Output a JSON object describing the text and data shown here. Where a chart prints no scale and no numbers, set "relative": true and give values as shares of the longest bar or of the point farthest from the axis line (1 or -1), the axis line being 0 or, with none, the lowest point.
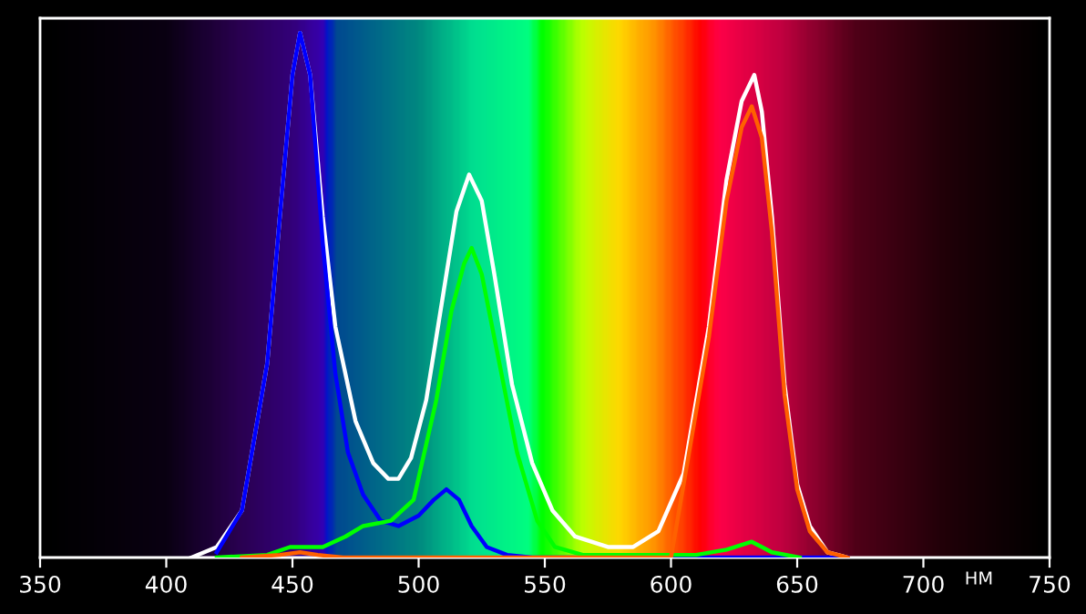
{
  "chart_data": {
    "type": "line",
    "relative": true,
    "xlabel": "НМ",
    "xlim": [
      350,
      750
    ],
    "xticks": [
      350,
      400,
      450,
      500,
      550,
      600,
      650,
      700,
      750
    ],
    "grid": false,
    "legend": false,
    "marker": "none",
    "line_style": "solid",
    "tick_labels": "x",
    "series": [
      {
        "color": "#ffffff",
        "x": [
          410,
          420,
          430,
          440,
          445,
          450,
          453,
          457,
          462,
          467,
          475,
          482,
          488,
          492,
          497,
          503,
          510,
          515,
          520,
          525,
          530,
          537,
          545,
          553,
          562,
          575,
          585,
          595,
          605,
          615,
          622,
          628,
          633,
          636,
          640,
          645,
          650,
          655,
          662,
          670
        ],
        "values": [
          0,
          0.02,
          0.09,
          0.37,
          0.65,
          0.92,
          1,
          0.92,
          0.65,
          0.44,
          0.26,
          0.18,
          0.15,
          0.15,
          0.19,
          0.3,
          0.51,
          0.66,
          0.73,
          0.68,
          0.54,
          0.33,
          0.18,
          0.09,
          0.04,
          0.02,
          0.02,
          0.05,
          0.16,
          0.44,
          0.72,
          0.87,
          0.92,
          0.85,
          0.65,
          0.33,
          0.14,
          0.06,
          0.01,
          0
        ]
      },
      {
        "color": "#0000ff",
        "x": [
          420,
          430,
          440,
          445,
          450,
          453,
          457,
          462,
          467,
          472,
          478,
          485,
          492,
          500,
          506,
          511,
          516,
          521,
          527,
          535,
          545,
          670
        ],
        "values": [
          0.01,
          0.09,
          0.37,
          0.65,
          0.92,
          1,
          0.92,
          0.6,
          0.35,
          0.2,
          0.12,
          0.07,
          0.06,
          0.08,
          0.11,
          0.13,
          0.11,
          0.06,
          0.02,
          0.005,
          0,
          0
        ]
      },
      {
        "color": "#00ff00",
        "x": [
          420,
          440,
          449,
          453,
          462,
          471,
          478,
          489,
          498,
          507,
          513,
          518,
          521,
          525,
          532,
          539,
          547,
          554,
          565,
          610,
          622,
          632,
          640,
          651
        ],
        "values": [
          0,
          0.005,
          0.02,
          0.02,
          0.02,
          0.04,
          0.06,
          0.07,
          0.11,
          0.3,
          0.47,
          0.56,
          0.59,
          0.54,
          0.37,
          0.2,
          0.07,
          0.02,
          0.005,
          0.005,
          0.015,
          0.03,
          0.01,
          0
        ]
      },
      {
        "color": "#ff6000",
        "x": [
          430,
          445,
          453,
          460,
          470,
          600,
          605,
          615,
          622,
          628,
          632,
          636,
          640,
          645,
          650,
          655,
          662,
          670
        ],
        "values": [
          0,
          0.005,
          0.01,
          0.005,
          0,
          0,
          0.14,
          0.42,
          0.68,
          0.82,
          0.86,
          0.8,
          0.62,
          0.31,
          0.13,
          0.05,
          0.01,
          0
        ]
      }
    ]
  }
}
